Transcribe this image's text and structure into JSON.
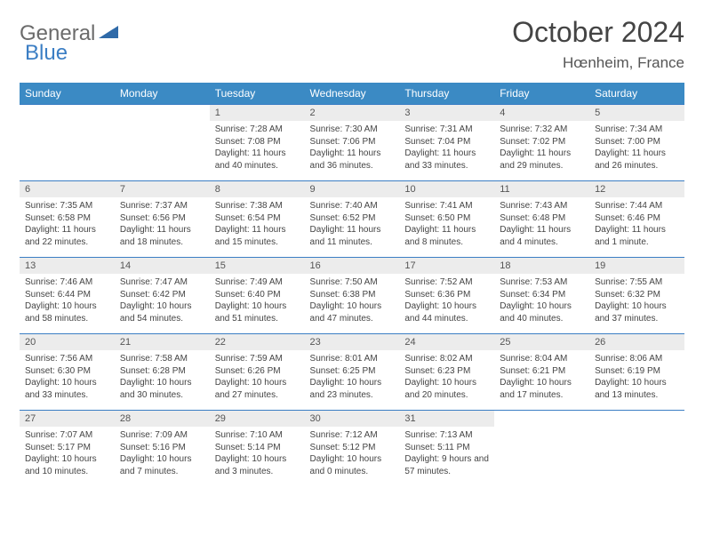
{
  "logo": {
    "word1": "General",
    "word2": "Blue"
  },
  "title": "October 2024",
  "location": "Hœnheim, France",
  "colors": {
    "header_bg": "#3b8ac4",
    "header_text": "#ffffff",
    "daynum_bg": "#ececec",
    "border": "#3b7ec4",
    "text": "#444444",
    "logo_gray": "#6b6b6b",
    "logo_blue": "#3b7ec4",
    "page_bg": "#ffffff"
  },
  "fonts": {
    "title_size": 32,
    "location_size": 17,
    "header_size": 12,
    "daynum_size": 11,
    "body_size": 10
  },
  "weekdays": [
    "Sunday",
    "Monday",
    "Tuesday",
    "Wednesday",
    "Thursday",
    "Friday",
    "Saturday"
  ],
  "weeks": [
    [
      {
        "day": "",
        "sunrise": "",
        "sunset": "",
        "daylight": ""
      },
      {
        "day": "",
        "sunrise": "",
        "sunset": "",
        "daylight": ""
      },
      {
        "day": "1",
        "sunrise": "Sunrise: 7:28 AM",
        "sunset": "Sunset: 7:08 PM",
        "daylight": "Daylight: 11 hours and 40 minutes."
      },
      {
        "day": "2",
        "sunrise": "Sunrise: 7:30 AM",
        "sunset": "Sunset: 7:06 PM",
        "daylight": "Daylight: 11 hours and 36 minutes."
      },
      {
        "day": "3",
        "sunrise": "Sunrise: 7:31 AM",
        "sunset": "Sunset: 7:04 PM",
        "daylight": "Daylight: 11 hours and 33 minutes."
      },
      {
        "day": "4",
        "sunrise": "Sunrise: 7:32 AM",
        "sunset": "Sunset: 7:02 PM",
        "daylight": "Daylight: 11 hours and 29 minutes."
      },
      {
        "day": "5",
        "sunrise": "Sunrise: 7:34 AM",
        "sunset": "Sunset: 7:00 PM",
        "daylight": "Daylight: 11 hours and 26 minutes."
      }
    ],
    [
      {
        "day": "6",
        "sunrise": "Sunrise: 7:35 AM",
        "sunset": "Sunset: 6:58 PM",
        "daylight": "Daylight: 11 hours and 22 minutes."
      },
      {
        "day": "7",
        "sunrise": "Sunrise: 7:37 AM",
        "sunset": "Sunset: 6:56 PM",
        "daylight": "Daylight: 11 hours and 18 minutes."
      },
      {
        "day": "8",
        "sunrise": "Sunrise: 7:38 AM",
        "sunset": "Sunset: 6:54 PM",
        "daylight": "Daylight: 11 hours and 15 minutes."
      },
      {
        "day": "9",
        "sunrise": "Sunrise: 7:40 AM",
        "sunset": "Sunset: 6:52 PM",
        "daylight": "Daylight: 11 hours and 11 minutes."
      },
      {
        "day": "10",
        "sunrise": "Sunrise: 7:41 AM",
        "sunset": "Sunset: 6:50 PM",
        "daylight": "Daylight: 11 hours and 8 minutes."
      },
      {
        "day": "11",
        "sunrise": "Sunrise: 7:43 AM",
        "sunset": "Sunset: 6:48 PM",
        "daylight": "Daylight: 11 hours and 4 minutes."
      },
      {
        "day": "12",
        "sunrise": "Sunrise: 7:44 AM",
        "sunset": "Sunset: 6:46 PM",
        "daylight": "Daylight: 11 hours and 1 minute."
      }
    ],
    [
      {
        "day": "13",
        "sunrise": "Sunrise: 7:46 AM",
        "sunset": "Sunset: 6:44 PM",
        "daylight": "Daylight: 10 hours and 58 minutes."
      },
      {
        "day": "14",
        "sunrise": "Sunrise: 7:47 AM",
        "sunset": "Sunset: 6:42 PM",
        "daylight": "Daylight: 10 hours and 54 minutes."
      },
      {
        "day": "15",
        "sunrise": "Sunrise: 7:49 AM",
        "sunset": "Sunset: 6:40 PM",
        "daylight": "Daylight: 10 hours and 51 minutes."
      },
      {
        "day": "16",
        "sunrise": "Sunrise: 7:50 AM",
        "sunset": "Sunset: 6:38 PM",
        "daylight": "Daylight: 10 hours and 47 minutes."
      },
      {
        "day": "17",
        "sunrise": "Sunrise: 7:52 AM",
        "sunset": "Sunset: 6:36 PM",
        "daylight": "Daylight: 10 hours and 44 minutes."
      },
      {
        "day": "18",
        "sunrise": "Sunrise: 7:53 AM",
        "sunset": "Sunset: 6:34 PM",
        "daylight": "Daylight: 10 hours and 40 minutes."
      },
      {
        "day": "19",
        "sunrise": "Sunrise: 7:55 AM",
        "sunset": "Sunset: 6:32 PM",
        "daylight": "Daylight: 10 hours and 37 minutes."
      }
    ],
    [
      {
        "day": "20",
        "sunrise": "Sunrise: 7:56 AM",
        "sunset": "Sunset: 6:30 PM",
        "daylight": "Daylight: 10 hours and 33 minutes."
      },
      {
        "day": "21",
        "sunrise": "Sunrise: 7:58 AM",
        "sunset": "Sunset: 6:28 PM",
        "daylight": "Daylight: 10 hours and 30 minutes."
      },
      {
        "day": "22",
        "sunrise": "Sunrise: 7:59 AM",
        "sunset": "Sunset: 6:26 PM",
        "daylight": "Daylight: 10 hours and 27 minutes."
      },
      {
        "day": "23",
        "sunrise": "Sunrise: 8:01 AM",
        "sunset": "Sunset: 6:25 PM",
        "daylight": "Daylight: 10 hours and 23 minutes."
      },
      {
        "day": "24",
        "sunrise": "Sunrise: 8:02 AM",
        "sunset": "Sunset: 6:23 PM",
        "daylight": "Daylight: 10 hours and 20 minutes."
      },
      {
        "day": "25",
        "sunrise": "Sunrise: 8:04 AM",
        "sunset": "Sunset: 6:21 PM",
        "daylight": "Daylight: 10 hours and 17 minutes."
      },
      {
        "day": "26",
        "sunrise": "Sunrise: 8:06 AM",
        "sunset": "Sunset: 6:19 PM",
        "daylight": "Daylight: 10 hours and 13 minutes."
      }
    ],
    [
      {
        "day": "27",
        "sunrise": "Sunrise: 7:07 AM",
        "sunset": "Sunset: 5:17 PM",
        "daylight": "Daylight: 10 hours and 10 minutes."
      },
      {
        "day": "28",
        "sunrise": "Sunrise: 7:09 AM",
        "sunset": "Sunset: 5:16 PM",
        "daylight": "Daylight: 10 hours and 7 minutes."
      },
      {
        "day": "29",
        "sunrise": "Sunrise: 7:10 AM",
        "sunset": "Sunset: 5:14 PM",
        "daylight": "Daylight: 10 hours and 3 minutes."
      },
      {
        "day": "30",
        "sunrise": "Sunrise: 7:12 AM",
        "sunset": "Sunset: 5:12 PM",
        "daylight": "Daylight: 10 hours and 0 minutes."
      },
      {
        "day": "31",
        "sunrise": "Sunrise: 7:13 AM",
        "sunset": "Sunset: 5:11 PM",
        "daylight": "Daylight: 9 hours and 57 minutes."
      },
      {
        "day": "",
        "sunrise": "",
        "sunset": "",
        "daylight": ""
      },
      {
        "day": "",
        "sunrise": "",
        "sunset": "",
        "daylight": ""
      }
    ]
  ]
}
